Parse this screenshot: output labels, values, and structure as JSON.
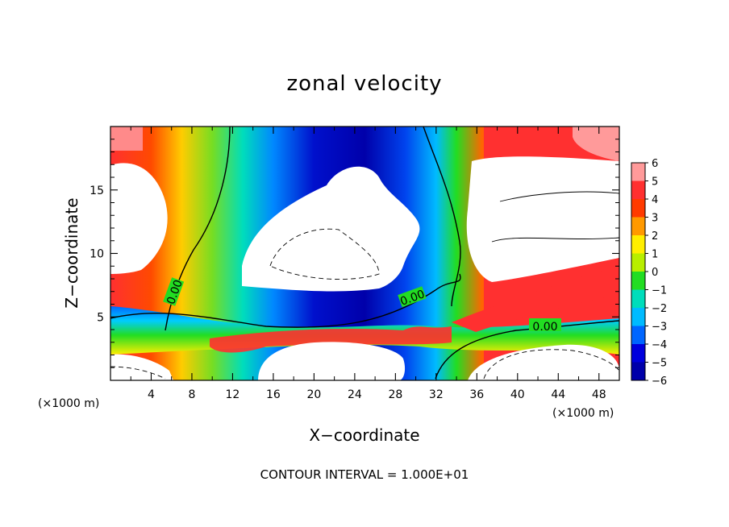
{
  "chart_data": {
    "type": "heatmap",
    "title": "zonal velocity",
    "xlabel": "X−coordinate",
    "ylabel": "Z−coordinate",
    "x_unit_left": "(×1000 m)",
    "x_unit_right": "(×1000 m)",
    "xlim": [
      0,
      50
    ],
    "ylim": [
      0,
      20
    ],
    "xticks": [
      4,
      8,
      12,
      16,
      20,
      24,
      28,
      32,
      36,
      40,
      44,
      48
    ],
    "yticks": [
      5,
      10,
      15
    ],
    "colorbar": {
      "levels": [
        6,
        5,
        4,
        3,
        2,
        1,
        0,
        -1,
        -2,
        -3,
        -4,
        -5,
        -6
      ],
      "labels": [
        "6",
        "5",
        "4",
        "3",
        "2",
        "1",
        "0",
        "−1",
        "−2",
        "−3",
        "−4",
        "−5",
        "−6"
      ],
      "colors": [
        "#ff9a9a",
        "#ff3030",
        "#ff3a00",
        "#ff9900",
        "#ffee00",
        "#b8ee00",
        "#22dd22",
        "#00ddbb",
        "#00bbff",
        "#0066ff",
        "#0000dd",
        "#0000aa",
        "#7700bb"
      ]
    },
    "contour_labels": [
      "0.00",
      "0.00",
      "0.00"
    ],
    "footer": "CONTOUR INTERVAL = 1.000E+01"
  }
}
